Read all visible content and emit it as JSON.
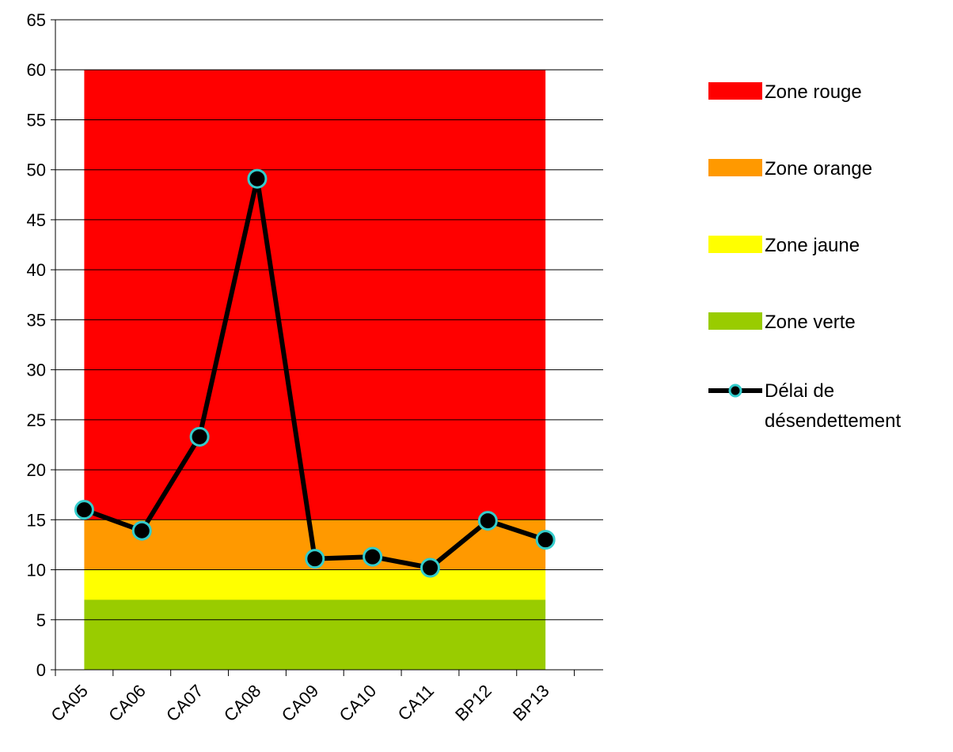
{
  "chart_data": {
    "type": "line",
    "title": "",
    "xlabel": "",
    "ylabel": "",
    "categories": [
      "CA05",
      "CA06",
      "CA07",
      "CA08",
      "CA09",
      "CA10",
      "CA11",
      "BP12",
      "BP13"
    ],
    "ylim": [
      0,
      65
    ],
    "yticks": [
      0,
      5,
      10,
      15,
      20,
      25,
      30,
      35,
      40,
      45,
      50,
      55,
      60,
      65
    ],
    "grid": "horizontal",
    "legend_position": "right",
    "zones": [
      {
        "name": "Zone rouge",
        "from": 15,
        "to": 60,
        "color": "#ff0000"
      },
      {
        "name": "Zone orange",
        "from": 10,
        "to": 15,
        "color": "#ff9900"
      },
      {
        "name": "Zone jaune",
        "from": 7,
        "to": 10,
        "color": "#ffff00"
      },
      {
        "name": "Zone verte",
        "from": 0,
        "to": 7,
        "color": "#99cc00"
      }
    ],
    "series": [
      {
        "name": "Délai de désendettement",
        "color": "#000000",
        "marker_color": "#33cccc",
        "values": [
          16.0,
          13.9,
          23.3,
          49.1,
          11.1,
          11.3,
          10.2,
          14.9,
          13.0
        ]
      }
    ],
    "legend": {
      "labels": [
        "Zone rouge",
        "Zone orange",
        "Zone jaune",
        "Zone verte",
        "Délai de désendettement"
      ]
    }
  }
}
